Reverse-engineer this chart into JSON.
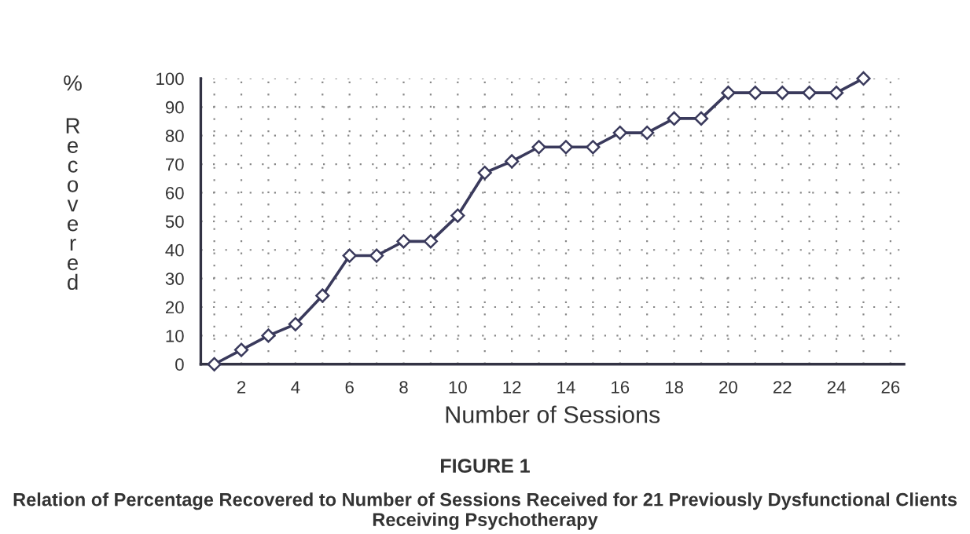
{
  "chart_data": {
    "type": "line",
    "title": "FIGURE 1",
    "subtitle": "Relation of Percentage Recovered to Number of Sessions Received for 21 Previously Dysfunctional Clients Receiving Psychotherapy",
    "xlabel": "Number of Sessions",
    "ylabel": "% Recovered",
    "x": [
      1,
      2,
      3,
      4,
      5,
      6,
      7,
      8,
      9,
      10,
      11,
      12,
      13,
      14,
      15,
      16,
      17,
      18,
      19,
      20,
      21,
      22,
      23,
      24,
      25
    ],
    "series": [
      {
        "color": "#3a3a5c",
        "values": [
          0,
          5,
          10,
          14,
          24,
          38,
          38,
          43,
          43,
          52,
          67,
          71,
          76,
          76,
          76,
          81,
          81,
          86,
          86,
          95,
          95,
          95,
          95,
          95,
          100
        ]
      }
    ],
    "xlim": [
      0.5,
      26.5
    ],
    "xticks": [
      {
        "value": 1,
        "label": null
      },
      2,
      {
        "value": 3,
        "label": null
      },
      4,
      {
        "value": 5,
        "label": null
      },
      6,
      {
        "value": 7,
        "label": null
      },
      8,
      {
        "value": 9,
        "label": null
      },
      10,
      {
        "value": 11,
        "label": null
      },
      12,
      {
        "value": 13,
        "label": null
      },
      14,
      {
        "value": 15,
        "label": null
      },
      16,
      {
        "value": 17,
        "label": null
      },
      18,
      {
        "value": 19,
        "label": null
      },
      20,
      {
        "value": 21,
        "label": null
      },
      22,
      {
        "value": 23,
        "label": null
      },
      24,
      {
        "value": 25,
        "label": null
      },
      26
    ],
    "ylim": [
      0,
      100
    ],
    "yticks": [
      0,
      10,
      20,
      30,
      40,
      50,
      60,
      70,
      80,
      90,
      100
    ],
    "grid": true,
    "marker": "diamond",
    "line_style": "solid"
  }
}
